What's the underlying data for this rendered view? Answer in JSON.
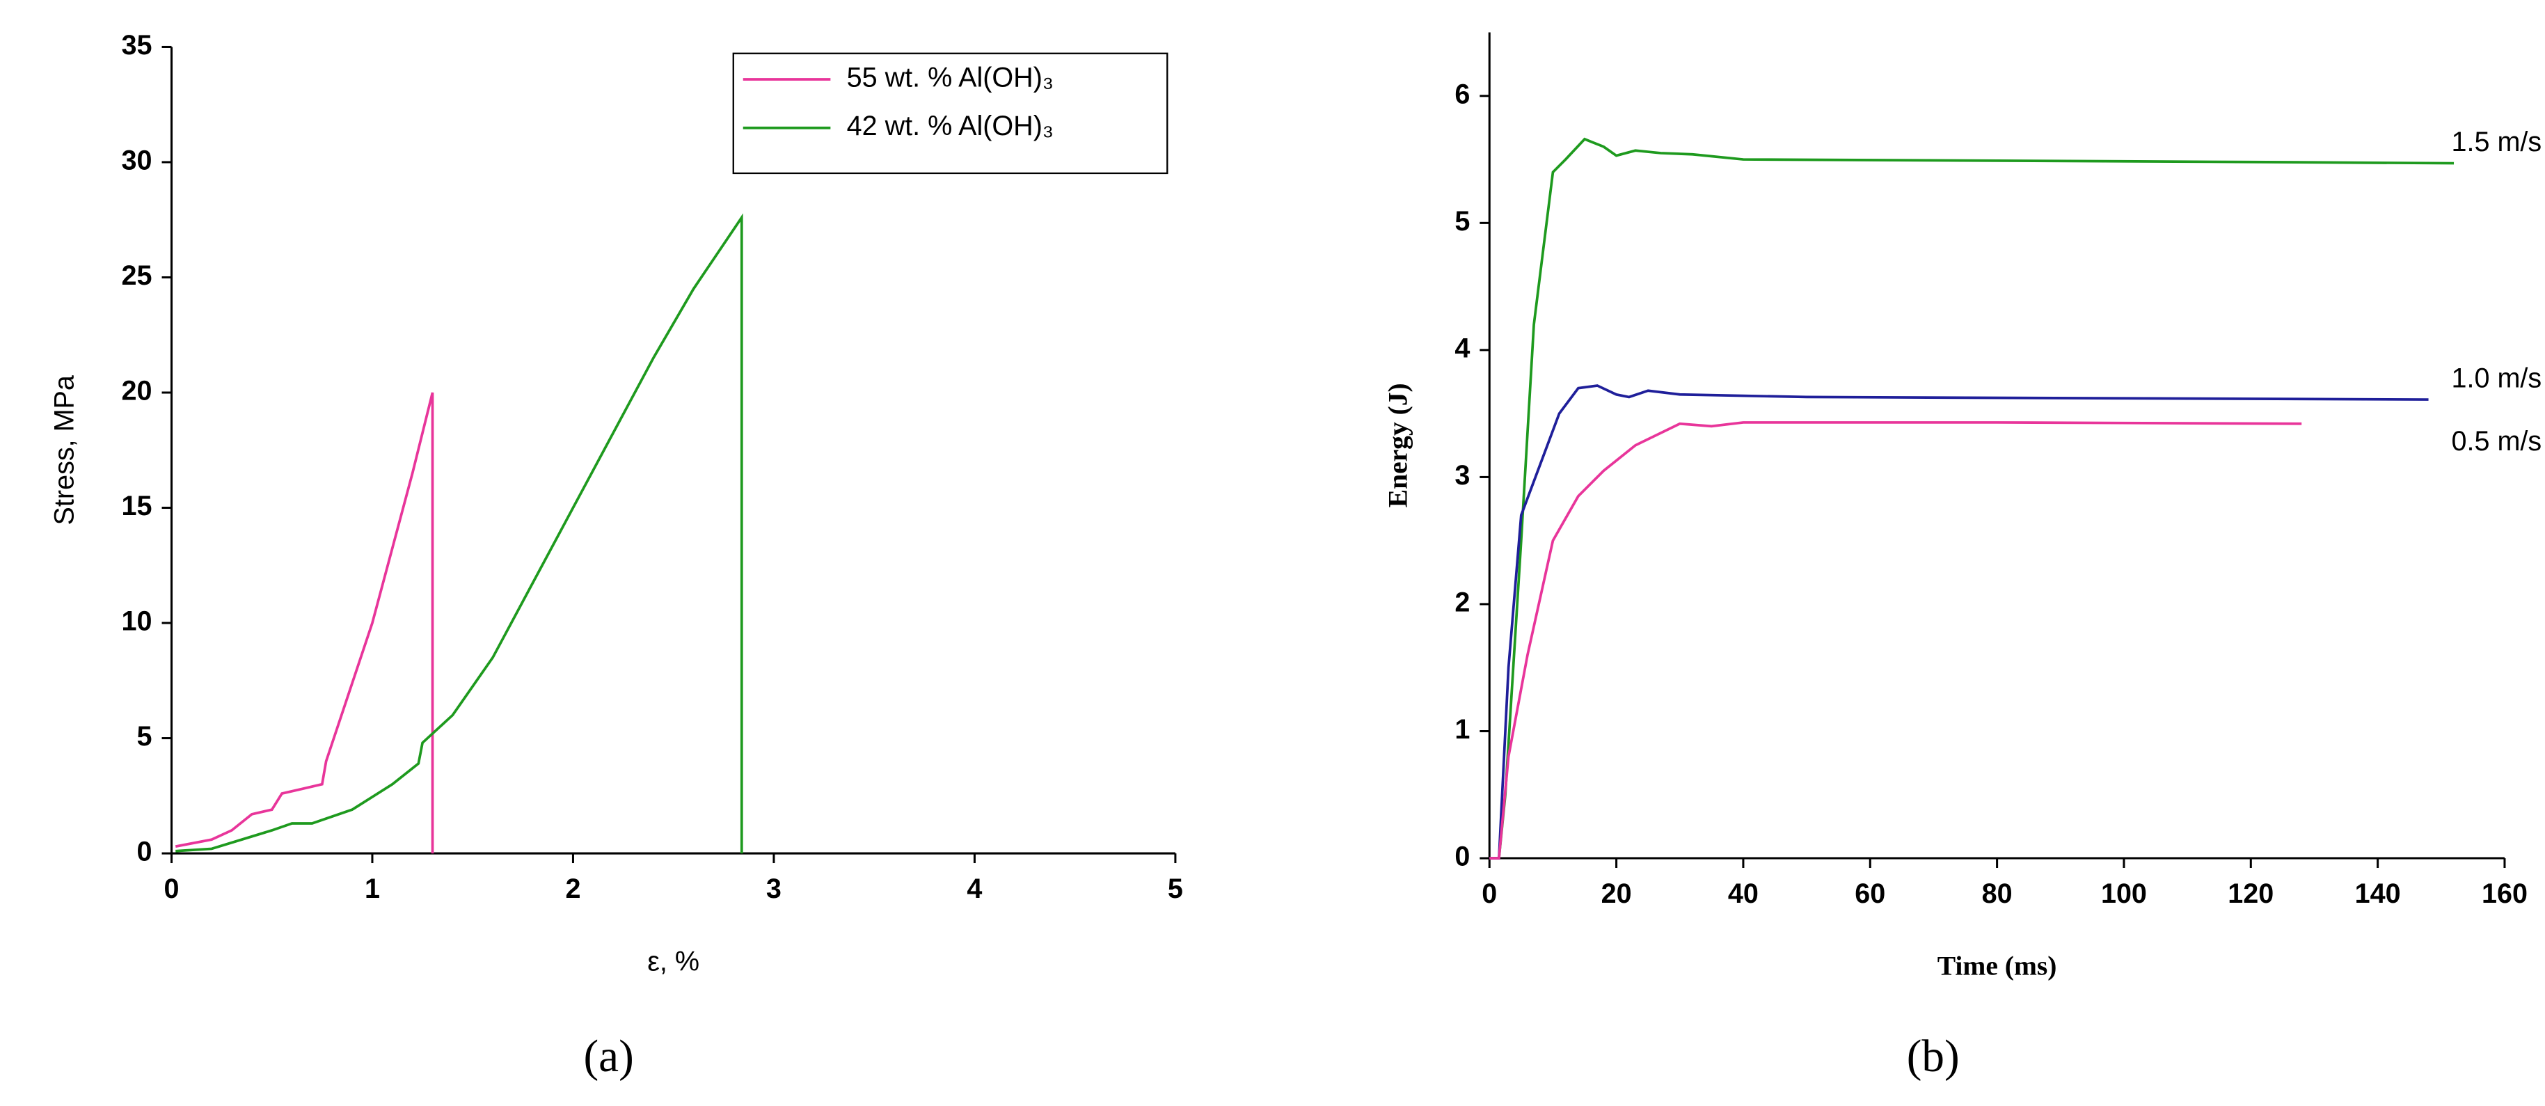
{
  "chart_data": [
    {
      "type": "line",
      "caption": "(a)",
      "x_label": "ε, %",
      "y_label": "Stress, MPa",
      "xlim": [
        0,
        5
      ],
      "xticks": [
        0,
        1,
        2,
        3,
        4,
        5
      ],
      "ylim": [
        0,
        35
      ],
      "yticks": [
        0,
        5,
        10,
        15,
        20,
        25,
        30,
        35
      ],
      "legend": "upper right",
      "series": [
        {
          "name": "55 wt. % Al(OH)₃",
          "color": "#e8359a",
          "x": [
            0.02,
            0.2,
            0.3,
            0.4,
            0.5,
            0.55,
            0.65,
            0.75,
            0.77,
            1.0,
            1.2,
            1.3,
            1.3
          ],
          "values": [
            0.3,
            0.6,
            1,
            1.7,
            1.9,
            2.6,
            2.8,
            3,
            4,
            10,
            16.5,
            20,
            0
          ]
        },
        {
          "name": "42 wt. % Al(OH)₃",
          "color": "#1e9a1e",
          "x": [
            0.02,
            0.2,
            0.35,
            0.5,
            0.6,
            0.7,
            0.9,
            1.1,
            1.23,
            1.25,
            1.4,
            1.6,
            2.0,
            2.4,
            2.6,
            2.84,
            2.84
          ],
          "values": [
            0.1,
            0.2,
            0.6,
            1.0,
            1.3,
            1.3,
            1.9,
            3,
            3.9,
            4.8,
            6,
            8.5,
            15,
            21.5,
            24.5,
            27.6,
            0
          ]
        }
      ]
    },
    {
      "type": "line",
      "caption": "(b)",
      "x_label": "Time (ms)",
      "y_label": "Energy (J)",
      "xlim": [
        0,
        160
      ],
      "xticks": [
        0,
        20,
        40,
        60,
        80,
        100,
        120,
        140,
        160
      ],
      "ylim": [
        0,
        6.5
      ],
      "yticks": [
        0,
        1,
        2,
        3,
        4,
        5,
        6
      ],
      "legend": "line end",
      "series": [
        {
          "name": "1.5 m/s",
          "color": "#1e9a1e",
          "x": [
            0,
            1.5,
            2.5,
            5,
            7,
            10,
            12,
            15,
            18,
            20,
            23,
            27,
            32,
            40,
            80,
            120,
            152
          ],
          "values": [
            0,
            0,
            0.5,
            2.5,
            4.2,
            5.4,
            5.5,
            5.66,
            5.6,
            5.53,
            5.57,
            5.55,
            5.54,
            5.5,
            5.49,
            5.48,
            5.47
          ]
        },
        {
          "name": "1.0 m/s",
          "color": "#1f1f9a",
          "x": [
            0,
            1.5,
            3,
            5,
            8,
            11,
            14,
            17,
            20,
            22,
            25,
            30,
            50,
            100,
            148
          ],
          "values": [
            0,
            0,
            1.5,
            2.7,
            3.1,
            3.5,
            3.7,
            3.72,
            3.65,
            3.63,
            3.68,
            3.65,
            3.63,
            3.62,
            3.61
          ]
        },
        {
          "name": "0.5 m/s",
          "color": "#e8359a",
          "x": [
            0,
            1.5,
            3,
            6,
            10,
            14,
            18,
            23,
            30,
            35,
            40,
            80,
            128
          ],
          "values": [
            0,
            0,
            0.8,
            1.6,
            2.5,
            2.85,
            3.05,
            3.25,
            3.42,
            3.4,
            3.43,
            3.43,
            3.42
          ]
        }
      ]
    }
  ]
}
